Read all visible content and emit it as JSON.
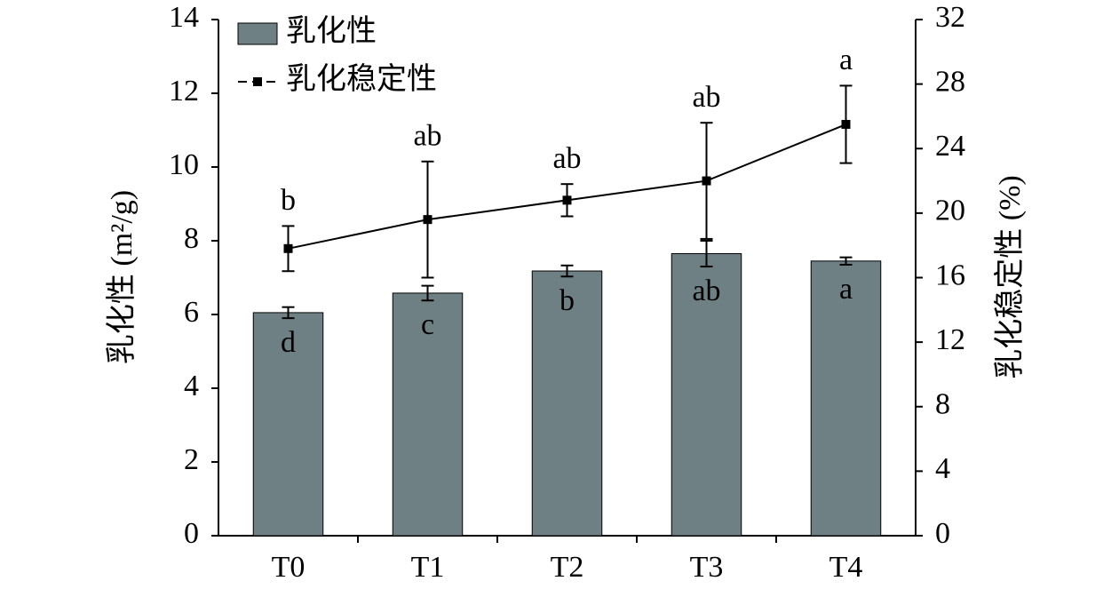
{
  "chart_data": {
    "type": "bar",
    "categories": [
      "T0",
      "T1",
      "T2",
      "T3",
      "T4"
    ],
    "y_label": "乳化性 (m²/g)",
    "y2_label": "乳化稳定性 (%)",
    "ylim": [
      0,
      14
    ],
    "yticks": [
      0,
      2,
      4,
      6,
      8,
      10,
      12,
      14
    ],
    "y2lim": [
      0,
      32
    ],
    "y2ticks": [
      0,
      4,
      8,
      12,
      16,
      20,
      24,
      28,
      32
    ],
    "legend": "upper left",
    "series": [
      {
        "name": "乳化性",
        "type": "bar",
        "color": "#6f8085",
        "values": [
          6.05,
          6.58,
          7.18,
          7.65,
          7.45
        ],
        "errors": [
          0.15,
          0.2,
          0.15,
          0.35,
          0.1
        ],
        "labels": [
          "d",
          "c",
          "b",
          "ab",
          "a"
        ]
      },
      {
        "name": "乳化稳定性",
        "type": "line",
        "axis": "y2",
        "color": "#000000",
        "values": [
          17.8,
          19.6,
          20.8,
          22.0,
          25.5
        ],
        "errors": [
          1.4,
          3.6,
          1.0,
          3.6,
          2.4
        ],
        "labels": [
          "b",
          "ab",
          "ab",
          "ab",
          "a"
        ]
      }
    ]
  }
}
